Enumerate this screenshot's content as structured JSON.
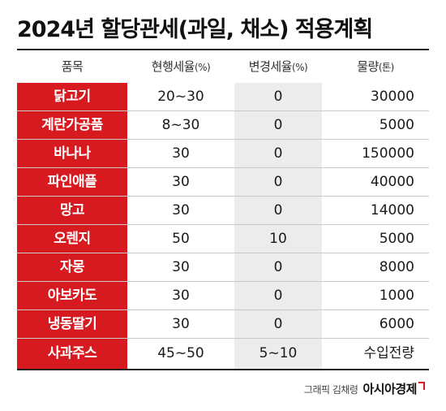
{
  "title": "2024년 할당관세(과일, 채소) 적용계획",
  "headers": {
    "item": "품목",
    "current": "현행세율",
    "current_unit": "(%)",
    "changed": "변경세율",
    "changed_unit": "(%)",
    "volume": "물량",
    "volume_unit": "(톤)"
  },
  "rows": [
    {
      "item": "닭고기",
      "current": "20~30",
      "changed": "0",
      "volume": "30000"
    },
    {
      "item": "계란가공품",
      "current": "8~30",
      "changed": "0",
      "volume": "5000"
    },
    {
      "item": "바나나",
      "current": "30",
      "changed": "0",
      "volume": "150000"
    },
    {
      "item": "파인애플",
      "current": "30",
      "changed": "0",
      "volume": "40000"
    },
    {
      "item": "망고",
      "current": "30",
      "changed": "0",
      "volume": "14000"
    },
    {
      "item": "오렌지",
      "current": "50",
      "changed": "10",
      "volume": "5000"
    },
    {
      "item": "자몽",
      "current": "30",
      "changed": "0",
      "volume": "8000"
    },
    {
      "item": "아보카도",
      "current": "30",
      "changed": "0",
      "volume": "1000"
    },
    {
      "item": "냉동딸기",
      "current": "30",
      "changed": "0",
      "volume": "6000"
    },
    {
      "item": "사과주스",
      "current": "45~50",
      "changed": "5~10",
      "volume": "수입전량"
    }
  ],
  "credit": {
    "graphic_by": "그래픽 김채령",
    "brand": "아시아경제"
  },
  "colors": {
    "accent": "#d71920",
    "column_shade": "#ececec"
  }
}
